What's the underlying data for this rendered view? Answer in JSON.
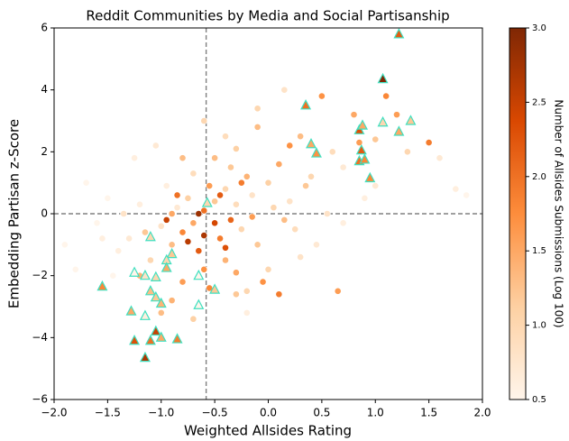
{
  "chart_data": {
    "type": "scatter",
    "title": "Reddit Communities by Media and Social Partisanship",
    "xlabel": "Weighted Allsides Rating",
    "ylabel": "Embedding Partisan z-Score",
    "xlim": [
      -2.0,
      2.0
    ],
    "ylim": [
      -6,
      6
    ],
    "xticks": [
      {
        "value": -2.0,
        "label": "−2.0"
      },
      {
        "value": -1.5,
        "label": "−1.5"
      },
      {
        "value": -1.0,
        "label": "−1.0"
      },
      {
        "value": -0.5,
        "label": "−0.5"
      },
      {
        "value": 0.0,
        "label": "0.0"
      },
      {
        "value": 0.5,
        "label": "0.5"
      },
      {
        "value": 1.0,
        "label": "1.0"
      },
      {
        "value": 1.5,
        "label": "1.5"
      },
      {
        "value": 2.0,
        "label": "2.0"
      }
    ],
    "yticks": [
      {
        "value": -6,
        "label": "−6"
      },
      {
        "value": -4,
        "label": "−4"
      },
      {
        "value": -2,
        "label": "−2"
      },
      0,
      2,
      4,
      6
    ],
    "vlines": [
      -0.58
    ],
    "hlines": [
      0
    ],
    "colorbar": {
      "label": "Number of Allsides Submissions (Log 100)",
      "lim": [
        0.5,
        3.0
      ],
      "ticks": [
        {
          "value": 0.5,
          "label": "0.5"
        },
        {
          "value": 1.0,
          "label": "1.0"
        },
        {
          "value": 1.5,
          "label": "1.5"
        },
        {
          "value": 2.0,
          "label": "2.0"
        },
        {
          "value": 2.5,
          "label": "2.5"
        },
        {
          "value": 3.0,
          "label": "3.0"
        }
      ],
      "colormap": [
        "#fff5eb",
        "#fdd0a2",
        "#fd8d3c",
        "#d94801",
        "#7f2704"
      ]
    },
    "series": [
      {
        "marker": "circle",
        "edgecolor": "#ffffff",
        "x": [
          -0.6,
          -0.7,
          -0.5,
          -0.8,
          -0.4,
          -0.9,
          -0.3,
          -0.65,
          -0.55,
          -0.75,
          -1.0,
          -0.2,
          -0.85,
          -0.45,
          -0.35,
          -1.1,
          -0.15,
          -0.6,
          -0.5,
          -0.95,
          0.0,
          -1.2,
          -0.25,
          -0.7,
          0.1,
          -1.3,
          -0.4,
          0.2,
          -0.8,
          -0.3,
          0.3,
          -1.4,
          0.4,
          -0.55,
          0.5,
          -1.5,
          0.6,
          -0.9,
          0.7,
          -0.1,
          0.8,
          -1.6,
          1.0,
          -1.0,
          1.1,
          -1.7,
          1.2,
          -0.7,
          1.3,
          0.0,
          1.5,
          -1.8,
          1.6,
          -0.3,
          0.9,
          -1.9,
          1.75,
          -0.2,
          1.85,
          0.3,
          0.15,
          -0.6,
          -0.1,
          0.25,
          -0.05,
          0.1,
          0.45,
          0.65,
          0.55,
          0.35,
          -1.25,
          -1.05,
          -0.95,
          -0.65,
          -0.5,
          -0.75,
          -0.45,
          -0.85,
          -0.6,
          -0.35,
          -1.35,
          -1.45,
          -0.2,
          0.05,
          0.15,
          -0.15,
          -0.25,
          -0.4,
          -0.9,
          -1.15,
          -0.1,
          -0.4,
          0.7,
          1.0,
          -1.55,
          -1.2,
          -0.8,
          -0.3,
          0.2,
          0.85
        ],
        "y": [
          0.1,
          -0.3,
          0.4,
          -0.6,
          0.8,
          -1.0,
          0.3,
          -1.2,
          0.9,
          0.5,
          -0.4,
          1.2,
          0.2,
          -0.8,
          1.5,
          -1.5,
          0.6,
          -1.8,
          1.8,
          0.9,
          1.0,
          0.3,
          -0.5,
          1.3,
          1.6,
          -0.8,
          -1.5,
          0.4,
          -2.2,
          2.1,
          2.5,
          -1.2,
          1.2,
          -2.4,
          3.8,
          0.5,
          2.0,
          -2.8,
          1.5,
          -1.0,
          3.2,
          -0.3,
          2.4,
          -3.2,
          3.8,
          1.0,
          3.2,
          -3.4,
          2.0,
          -1.8,
          2.3,
          -1.8,
          1.8,
          -2.6,
          0.5,
          -1.0,
          0.8,
          -2.5,
          0.6,
          -1.4,
          4.0,
          3.0,
          2.8,
          -0.5,
          -2.2,
          -2.6,
          -1.0,
          -2.5,
          0.0,
          0.9,
          1.8,
          2.2,
          -0.2,
          0.0,
          -0.3,
          -0.9,
          0.6,
          0.6,
          -0.7,
          -0.2,
          0.0,
          -2.0,
          -3.2,
          0.2,
          -0.2,
          -0.1,
          1.0,
          -1.1,
          0.0,
          -0.6,
          3.4,
          2.5,
          -0.3,
          0.9,
          -0.8,
          -2.0,
          1.8,
          -1.9,
          2.2,
          2.3
        ],
        "c": [
          2.0,
          1.5,
          1.2,
          1.8,
          1.0,
          1.3,
          0.9,
          2.2,
          1.6,
          1.1,
          0.8,
          1.4,
          0.7,
          1.9,
          1.2,
          1.0,
          0.8,
          1.7,
          1.3,
          0.6,
          1.1,
          0.6,
          1.0,
          0.9,
          1.5,
          0.7,
          1.4,
          0.8,
          1.6,
          1.1,
          1.3,
          0.6,
          1.0,
          1.8,
          1.7,
          0.5,
          0.9,
          1.4,
          0.7,
          1.2,
          1.5,
          0.5,
          1.2,
          1.3,
          1.8,
          0.5,
          1.6,
          1.1,
          1.0,
          1.0,
          1.9,
          0.5,
          0.7,
          1.2,
          0.6,
          0.5,
          0.6,
          1.0,
          0.5,
          0.8,
          0.8,
          1.0,
          1.3,
          0.9,
          1.7,
          1.9,
          0.7,
          1.6,
          0.8,
          1.2,
          0.6,
          0.7,
          2.5,
          2.8,
          2.4,
          2.6,
          2.2,
          2.0,
          2.7,
          2.1,
          0.8,
          0.5,
          0.6,
          1.0,
          1.3,
          1.6,
          1.9,
          2.3,
          1.5,
          1.2,
          1.0,
          0.9,
          0.6,
          0.7,
          0.6,
          1.4,
          1.3,
          1.5,
          1.7,
          1.6
        ]
      },
      {
        "marker": "triangle",
        "edgecolor": "#40e0c0",
        "x": [
          1.22,
          1.07,
          0.35,
          0.85,
          0.88,
          1.07,
          1.33,
          1.22,
          0.4,
          0.45,
          0.87,
          0.85,
          0.9,
          0.95,
          -0.57,
          -1.1,
          -0.9,
          -0.95,
          -0.95,
          -1.25,
          -1.15,
          -1.05,
          -0.65,
          -1.55,
          -1.1,
          -1.05,
          -1.0,
          -0.5,
          -0.65,
          -1.28,
          -1.15,
          -1.05,
          -1.0,
          -0.85,
          -1.25,
          -1.1,
          -1.15
        ],
        "y": [
          5.8,
          4.35,
          3.5,
          2.7,
          2.85,
          2.95,
          3.0,
          2.65,
          2.25,
          1.95,
          2.05,
          1.7,
          1.75,
          1.15,
          0.35,
          -0.75,
          -1.3,
          -1.5,
          -1.75,
          -1.9,
          -2.0,
          -2.05,
          -2.0,
          -2.35,
          -2.5,
          -2.7,
          -2.9,
          -2.45,
          -2.95,
          -3.15,
          -3.3,
          -3.8,
          -4.0,
          -4.05,
          -4.1,
          -4.1,
          -4.65
        ],
        "c": [
          2.2,
          3.0,
          2.0,
          2.3,
          1.5,
          1.0,
          1.2,
          1.5,
          1.5,
          1.7,
          2.2,
          2.0,
          1.8,
          1.8,
          1.0,
          1.0,
          1.2,
          1.0,
          1.5,
          0.5,
          0.8,
          1.0,
          0.5,
          1.8,
          1.3,
          1.2,
          1.4,
          1.2,
          0.5,
          1.5,
          0.6,
          2.5,
          1.5,
          1.9,
          2.3,
          2.0,
          2.7
        ]
      }
    ]
  }
}
